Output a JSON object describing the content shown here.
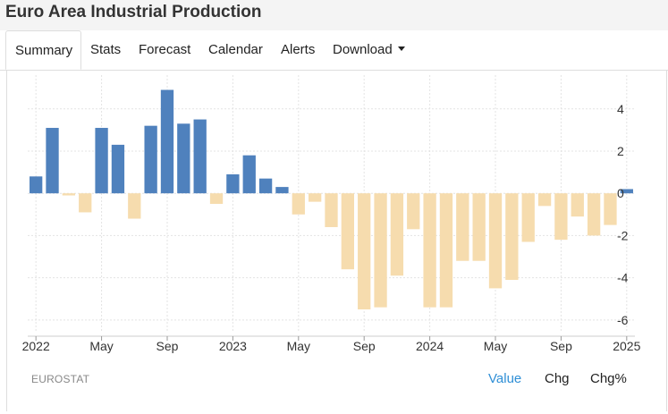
{
  "title": "Euro Area Industrial Production",
  "tabs": {
    "summary": "Summary",
    "stats": "Stats",
    "forecast": "Forecast",
    "calendar": "Calendar",
    "alerts": "Alerts",
    "download": "Download"
  },
  "source": "EUROSTAT",
  "toggles": {
    "value": "Value",
    "chg": "Chg",
    "chg_pct": "Chg%"
  },
  "colors": {
    "positive": "#4f81bd",
    "negative": "#f6dcae",
    "grid": "#e3e3e3",
    "active_toggle": "#2f8fd6"
  },
  "chart_data": {
    "type": "bar",
    "title": "",
    "xlabel": "",
    "ylabel": "",
    "ylim": [
      -6.6,
      5.6
    ],
    "yticks": [
      -6,
      -4,
      -2,
      0,
      2,
      4
    ],
    "xtick_labels": [
      {
        "label": "2022",
        "index": 0
      },
      {
        "label": "May",
        "index": 4
      },
      {
        "label": "Sep",
        "index": 8
      },
      {
        "label": "2023",
        "index": 12
      },
      {
        "label": "May",
        "index": 16
      },
      {
        "label": "Sep",
        "index": 20
      },
      {
        "label": "2024",
        "index": 24
      },
      {
        "label": "May",
        "index": 28
      },
      {
        "label": "Sep",
        "index": 32
      },
      {
        "label": "2025",
        "index": 36
      }
    ],
    "grid": true,
    "categories": [
      "Jan 2022",
      "Feb 2022",
      "Mar 2022",
      "Apr 2022",
      "May 2022",
      "Jun 2022",
      "Jul 2022",
      "Aug 2022",
      "Sep 2022",
      "Oct 2022",
      "Nov 2022",
      "Dec 2022",
      "Jan 2023",
      "Feb 2023",
      "Mar 2023",
      "Apr 2023",
      "May 2023",
      "Jun 2023",
      "Jul 2023",
      "Aug 2023",
      "Sep 2023",
      "Oct 2023",
      "Nov 2023",
      "Dec 2023",
      "Jan 2024",
      "Feb 2024",
      "Mar 2024",
      "Apr 2024",
      "May 2024",
      "Jun 2024",
      "Jul 2024",
      "Aug 2024",
      "Sep 2024",
      "Oct 2024",
      "Nov 2024",
      "Dec 2024",
      "Jan 2025"
    ],
    "values": [
      0.8,
      3.1,
      -0.1,
      -0.9,
      3.1,
      2.3,
      -1.2,
      3.2,
      4.9,
      3.3,
      3.5,
      -0.5,
      0.9,
      1.8,
      0.7,
      0.3,
      -1.0,
      -0.4,
      -1.6,
      -3.6,
      -5.5,
      -5.4,
      -3.9,
      -1.7,
      -5.4,
      -5.4,
      -3.2,
      -3.2,
      -4.5,
      -4.1,
      -2.3,
      -0.6,
      -2.2,
      -1.1,
      -2.0,
      -1.5,
      0.2
    ]
  }
}
